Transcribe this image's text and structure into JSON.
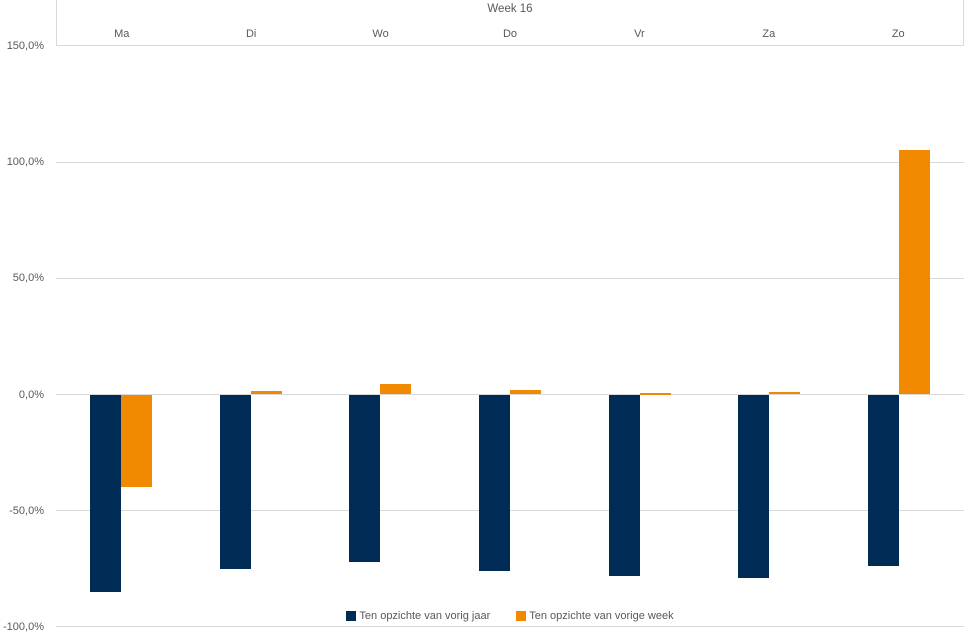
{
  "chart_data": {
    "type": "bar",
    "title": "Week 16",
    "categories": [
      "Ma",
      "Di",
      "Wo",
      "Do",
      "Vr",
      "Za",
      "Zo"
    ],
    "series": [
      {
        "name": "Ten opzichte van vorig jaar",
        "color": "#002B55",
        "values": [
          -85,
          -75,
          -72,
          -76,
          -78,
          -79,
          -74
        ]
      },
      {
        "name": "Ten opzichte van vorige week",
        "color": "#F18A00",
        "values": [
          -40,
          1.5,
          4.5,
          2,
          0.5,
          1,
          105
        ]
      }
    ],
    "y_axis": {
      "tick_labels": [
        "150,0%",
        "100,0%",
        "50,0%",
        "0,0%",
        "-50,0%",
        "-100,0%"
      ],
      "tick_values": [
        150,
        100,
        50,
        0,
        -50,
        -100
      ],
      "min": -100,
      "max": 150,
      "unit": "percent"
    },
    "grid": true,
    "legend_position": "bottom"
  },
  "colors": {
    "series_vorig_jaar": "#002B55",
    "series_vorige_week": "#F18A00",
    "gridline": "#D9D9D9",
    "border": "#D9D9D9",
    "text": "#595959",
    "background": "#FFFFFF"
  }
}
